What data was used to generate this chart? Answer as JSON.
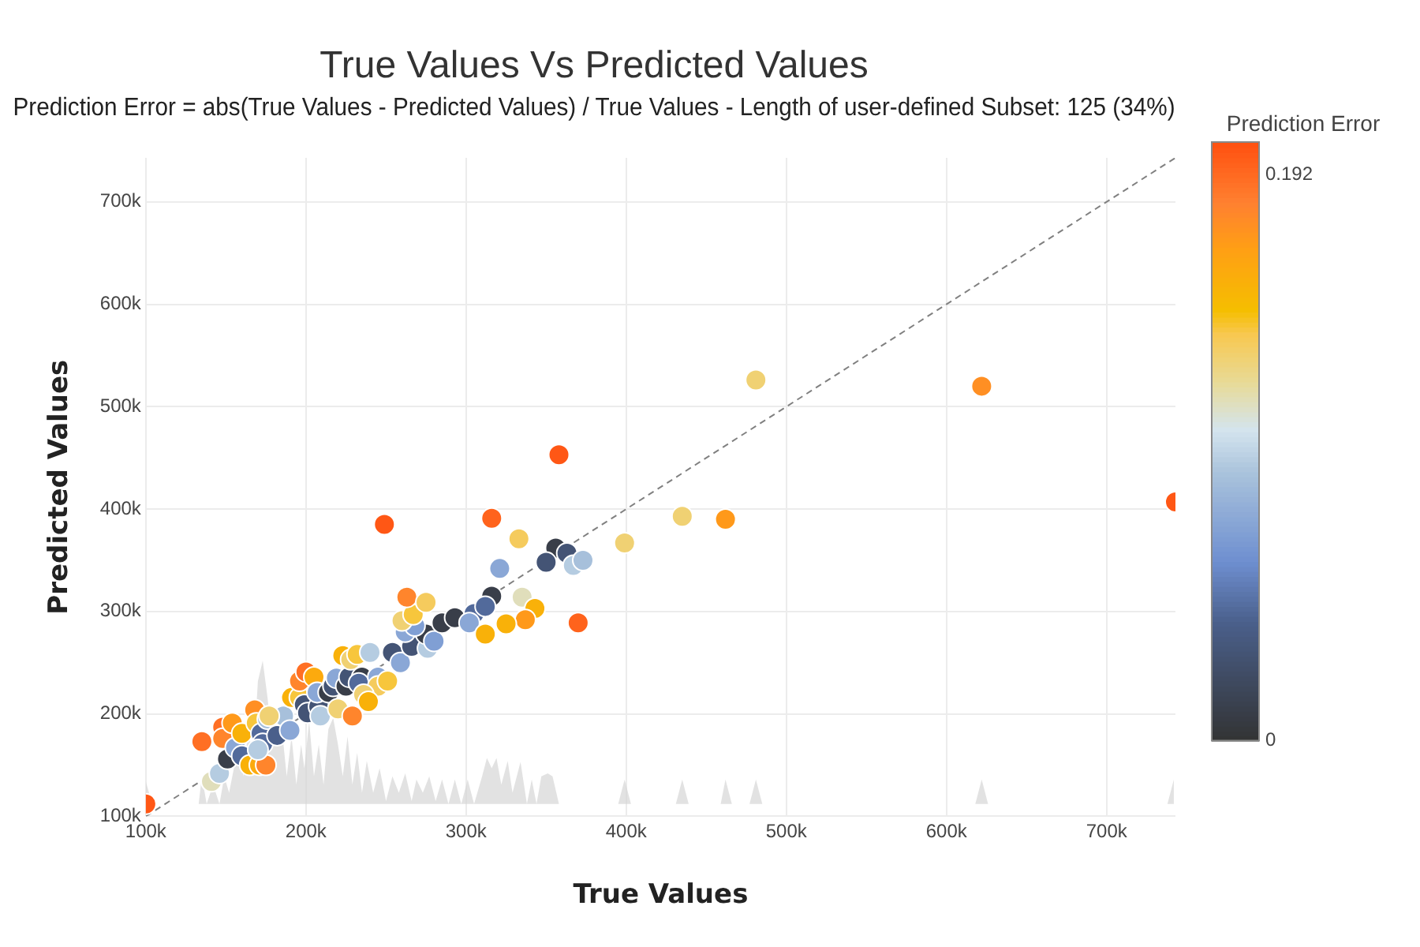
{
  "chart_data": {
    "type": "scatter",
    "title": "True Values Vs Predicted Values",
    "subtitle": "Prediction Error = abs(True Values - Predicted Values) / True Values - Length of user-defined Subset: 125 (34%)",
    "xlabel": "True Values",
    "ylabel": "Predicted Values",
    "clabel": "Prediction Error",
    "clim": [
      0,
      0.203
    ],
    "cticks": [
      0,
      0.192
    ],
    "xlim": [
      100000,
      743000
    ],
    "ylim": [
      100000,
      743000
    ],
    "xticks": [
      {
        "value": 100000,
        "label": "100k"
      },
      {
        "value": 200000,
        "label": "200k"
      },
      {
        "value": 300000,
        "label": "300k"
      },
      {
        "value": 400000,
        "label": "400k"
      },
      {
        "value": 500000,
        "label": "500k"
      },
      {
        "value": 600000,
        "label": "600k"
      },
      {
        "value": 700000,
        "label": "700k"
      }
    ],
    "yticks": [
      {
        "value": 100000,
        "label": "100k"
      },
      {
        "value": 200000,
        "label": "200k"
      },
      {
        "value": 300000,
        "label": "300k"
      },
      {
        "value": 400000,
        "label": "400k"
      },
      {
        "value": 500000,
        "label": "500k"
      },
      {
        "value": 600000,
        "label": "600k"
      },
      {
        "value": 700000,
        "label": "700k"
      }
    ],
    "grid": true,
    "marker": "circle",
    "series": [
      {
        "type": "area",
        "color": "#d3d3d3",
        "marker": "none",
        "x": [
          100000,
          104000,
          133000,
          135000,
          138000,
          142000,
          146000,
          149000,
          152000,
          155000,
          158000,
          161000,
          164000,
          167000,
          170000,
          173000,
          176000,
          179000,
          185000,
          188000,
          191000,
          194000,
          197000,
          199000,
          202000,
          205000,
          208000,
          211000,
          214000,
          217000,
          220000,
          223000,
          226000,
          229000,
          232000,
          235000,
          238000,
          242000,
          246000,
          250000,
          254000,
          258000,
          262000,
          266000,
          269000,
          273000,
          277000,
          281000,
          285000,
          289000,
          293000,
          297000,
          301000,
          305000,
          310000,
          313000,
          316000,
          319000,
          322000,
          326000,
          329000,
          334000,
          338000,
          341000,
          344000,
          347000,
          351000,
          354000,
          358000,
          395000,
          399000,
          403000,
          431000,
          435000,
          439000,
          459000,
          462000,
          466000,
          477000,
          481000,
          485000,
          618000,
          622000,
          626000,
          738000,
          742000
        ],
        "values": [
          134000,
          112000,
          112000,
          139000,
          112000,
          131000,
          112000,
          139000,
          123000,
          147000,
          170000,
          139000,
          185000,
          154000,
          232000,
          252000,
          216000,
          170000,
          185000,
          139000,
          178000,
          131000,
          170000,
          147000,
          193000,
          139000,
          170000,
          131000,
          185000,
          196000,
          170000,
          139000,
          178000,
          131000,
          162000,
          123000,
          154000,
          123000,
          147000,
          115000,
          139000,
          123000,
          142000,
          115000,
          136000,
          123000,
          139000,
          115000,
          136000,
          112000,
          136000,
          112000,
          136000,
          112000,
          139000,
          157000,
          147000,
          157000,
          131000,
          154000,
          123000,
          153000,
          112000,
          136000,
          112000,
          139000,
          142000,
          139000,
          112000,
          112000,
          136000,
          112000,
          112000,
          136000,
          112000,
          112000,
          136000,
          112000,
          112000,
          136000,
          112000,
          112000,
          136000,
          112000,
          112000,
          136000
        ]
      },
      {
        "type": "line",
        "color": "#808080",
        "marker": "none",
        "line_style": "dashed",
        "x": [
          100000,
          743000
        ],
        "values": [
          100000,
          743000
        ]
      },
      {
        "x": [
          100000,
          135000,
          148000,
          148000,
          154000,
          141000,
          146000,
          151000,
          156000,
          160000,
          160000,
          165000,
          171000,
          175000,
          168000,
          169000,
          172000,
          176000,
          173000,
          170000,
          182000,
          186000,
          190000,
          177000,
          191000,
          196000,
          196000,
          200000,
          205000,
          199000,
          201000,
          208000,
          209000,
          207000,
          214000,
          217000,
          220000,
          219000,
          225000,
          227000,
          235000,
          233000,
          245000,
          245000,
          236000,
          239000,
          229000,
          223000,
          228000,
          232000,
          240000,
          251000,
          254000,
          259000,
          266000,
          276000,
          275000,
          280000,
          285000,
          293000,
          262000,
          268000,
          260000,
          267000,
          263000,
          275000,
          249000,
          305000,
          302000,
          312000,
          358000,
          316000,
          333000,
          356000,
          363000,
          350000,
          367000,
          373000,
          321000,
          399000,
          370000,
          335000,
          343000,
          337000,
          325000,
          316000,
          312000,
          481000,
          622000,
          743000,
          435000,
          462000
        ],
        "values": [
          112000,
          173000,
          187000,
          176000,
          191000,
          134000,
          142000,
          156000,
          167000,
          159000,
          181000,
          150000,
          150000,
          150000,
          204000,
          191000,
          181000,
          195000,
          171000,
          165000,
          179000,
          198000,
          184000,
          198000,
          216000,
          216000,
          232000,
          241000,
          236000,
          209000,
          201000,
          207000,
          198000,
          221000,
          221000,
          227000,
          205000,
          235000,
          227000,
          236000,
          236000,
          230000,
          236000,
          227000,
          219000,
          212000,
          198000,
          257000,
          253000,
          258000,
          260000,
          232000,
          260000,
          250000,
          266000,
          264000,
          278000,
          271000,
          289000,
          294000,
          280000,
          286000,
          291000,
          297000,
          314000,
          309000,
          385000,
          298000,
          289000,
          278000,
          453000,
          391000,
          371000,
          362000,
          357000,
          348000,
          345000,
          350000,
          342000,
          367000,
          289000,
          314000,
          303000,
          292000,
          288000,
          315000,
          305000,
          526000,
          520000,
          407000,
          393000,
          390000
        ],
        "colors": [
          "#ff5715",
          "#ff6f24",
          "#ff6f24",
          "#ff852c",
          "#ff991a",
          "#e0debb",
          "#b5cce1",
          "#393e49",
          "#8aa7d6",
          "#526a9b",
          "#f9b109",
          "#f9b109",
          "#fcaa0e",
          "#ff852c",
          "#ff8f23",
          "#f7c63c",
          "#526a9b",
          "#a7c0db",
          "#526a9b",
          "#b5cce1",
          "#4a5f8b",
          "#a7c0db",
          "#8aa7d6",
          "#f0d173",
          "#f9b109",
          "#f7c63c",
          "#ff852c",
          "#ff6f24",
          "#fcaa0e",
          "#445475",
          "#445475",
          "#445475",
          "#b5cce1",
          "#8aa7d6",
          "#393e49",
          "#445475",
          "#f0d173",
          "#8aa7d6",
          "#393e49",
          "#445475",
          "#393e49",
          "#526a9b",
          "#8aa7d6",
          "#f5cb5d",
          "#f0d173",
          "#f9b109",
          "#ff852c",
          "#f9b109",
          "#f0d173",
          "#f7c63c",
          "#b5cce1",
          "#f7c63c",
          "#445475",
          "#8aa7d6",
          "#445475",
          "#b5cce1",
          "#393e49",
          "#809fd4",
          "#393e49",
          "#393e49",
          "#8aa7d6",
          "#809fd4",
          "#f0d173",
          "#f7c63c",
          "#ff852c",
          "#f5cb5d",
          "#ff5715",
          "#526a9b",
          "#8aa7d6",
          "#f9b109",
          "#ff5715",
          "#ff631c",
          "#f5cb5d",
          "#393e49",
          "#445475",
          "#445475",
          "#b5cce1",
          "#a7c0db",
          "#8aa7d6",
          "#f0d173",
          "#ff631c",
          "#e0debb",
          "#f9b109",
          "#ff991a",
          "#f9b109",
          "#393e49",
          "#526a9b",
          "#f0d173",
          "#ff8f23",
          "#ff5715",
          "#f0d173",
          "#ff991a"
        ]
      }
    ]
  }
}
